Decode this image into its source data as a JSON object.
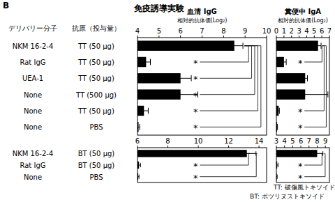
{
  "title": "B",
  "subtitle": "免疫誘導実験",
  "column_headers": [
    "デリバリー分子",
    "抗原（投与量）"
  ],
  "chart_data": [
    {
      "type": "bar",
      "orientation": "horizontal",
      "title": "血清 IgG",
      "x_label": "相対的抗体価(Log₂)",
      "categories": [
        "NKM 16-2-4",
        "Rat IgG",
        "UEA-1",
        "None",
        "None",
        "None"
      ],
      "antigens": [
        "TT (50 μg)",
        "TT (50 μg)",
        "TT (50 μg)",
        "TT (500 μg)",
        "TT (50 μg)",
        "PBS"
      ],
      "values": [
        8.5,
        4.4,
        6.0,
        6.0,
        4.3,
        4.05
      ],
      "errors": [
        0.4,
        0.2,
        0.5,
        0.8,
        0.2,
        0.05
      ],
      "xlim": [
        4,
        10
      ],
      "xticks": [
        4,
        5,
        6,
        7,
        8,
        9,
        10
      ],
      "color": "#000000",
      "significance": [
        null,
        "*",
        "*",
        "*",
        "*",
        "*"
      ]
    },
    {
      "type": "bar",
      "orientation": "horizontal",
      "title": "糞便中 IgA",
      "x_label": "相対的抗体価(Log₂)",
      "values": [
        5.5,
        1.0,
        3.8,
        3.8,
        0.3,
        0.1
      ],
      "errors": [
        0.4,
        0.3,
        0.3,
        3.0,
        0.1,
        0.05
      ],
      "xlim": [
        0,
        7
      ],
      "xticks": [
        0,
        1,
        2,
        3,
        4,
        5,
        6,
        7
      ],
      "color": "#000000",
      "significance": [
        null,
        "*",
        null,
        null,
        "*",
        "*"
      ]
    },
    {
      "type": "bar",
      "orientation": "horizontal",
      "categories": [
        "NKM 16-2-4",
        "Rat IgG",
        "None"
      ],
      "antigens": [
        "BT (50 μg)",
        "BT (50 μg)",
        "PBS"
      ],
      "values": [
        13.2,
        6.1,
        6.05
      ],
      "errors": [
        0.6,
        0.1,
        0.05
      ],
      "xlim": [
        6,
        14.5
      ],
      "xticks": [
        6,
        8,
        10,
        12,
        14
      ],
      "color": "#000000",
      "significance": [
        null,
        "*",
        "*"
      ]
    },
    {
      "type": "bar",
      "orientation": "horizontal",
      "values": [
        8.0,
        3.1,
        3.05
      ],
      "errors": [
        0.7,
        0.1,
        0.05
      ],
      "xlim": [
        3,
        9.5
      ],
      "xticks": [
        3,
        4,
        5,
        6,
        7,
        8,
        9
      ],
      "color": "#000000",
      "significance": [
        null,
        "*",
        "*"
      ]
    }
  ],
  "footnotes": [
    "TT: 破傷風トキソイド",
    "BT: ボツリヌストキソイド"
  ]
}
